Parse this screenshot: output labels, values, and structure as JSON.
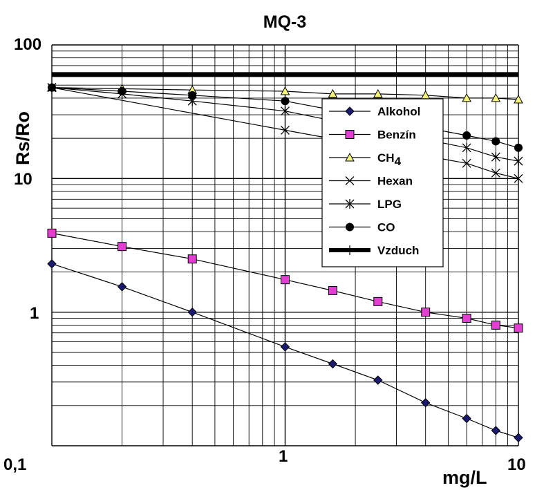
{
  "chart_data": {
    "type": "line",
    "title": "MQ-3",
    "xlabel": "mg/L",
    "ylabel": "Rs/Ro",
    "xscale": "log",
    "yscale": "log",
    "xlim": [
      0.1,
      10
    ],
    "ylim": [
      0.1,
      100
    ],
    "grid": true,
    "legend_position": "right",
    "x_tick_labels": [
      "0,1",
      "1",
      "10"
    ],
    "y_tick_labels": [
      "1",
      "10",
      "100"
    ],
    "series": [
      {
        "name": "Alkohol",
        "marker": "diamond",
        "color": "#1a1a70",
        "x": [
          0.1,
          0.2,
          0.4,
          1.0,
          1.6,
          2.5,
          4.0,
          6.0,
          8.0,
          10.0
        ],
        "y": [
          2.3,
          1.55,
          1.0,
          0.55,
          0.41,
          0.31,
          0.21,
          0.16,
          0.13,
          0.115
        ]
      },
      {
        "name": "Benzín",
        "marker": "square",
        "color": "#e23fd2",
        "x": [
          0.1,
          0.2,
          0.4,
          1.0,
          1.6,
          2.5,
          4.0,
          6.0,
          8.0,
          10.0
        ],
        "y": [
          3.9,
          3.1,
          2.5,
          1.75,
          1.45,
          1.2,
          1.0,
          0.9,
          0.8,
          0.76
        ]
      },
      {
        "name": "CH",
        "name_subscript": "4",
        "marker": "triangle",
        "color": "#f3f37a",
        "x": [
          0.1,
          0.2,
          0.4,
          1.0,
          1.6,
          2.5,
          4.0,
          6.0,
          8.0,
          10.0
        ],
        "y": [
          48,
          47,
          46,
          45,
          43,
          43,
          42,
          40,
          40,
          39
        ]
      },
      {
        "name": "Hexan",
        "marker": "x",
        "color": "#000000",
        "x": [
          0.1,
          1.0,
          6.0,
          8.0,
          10.0
        ],
        "y": [
          48,
          23,
          13,
          11,
          10
        ]
      },
      {
        "name": "LPG",
        "marker": "asterisk",
        "color": "#000000",
        "x": [
          0.1,
          0.2,
          0.4,
          1.0,
          6.0,
          8.0,
          10.0
        ],
        "y": [
          48,
          43,
          38,
          32,
          17,
          14.5,
          13.5
        ]
      },
      {
        "name": "CO",
        "marker": "circle",
        "color": "#000000",
        "x": [
          0.1,
          0.2,
          0.4,
          1.0,
          6.0,
          8.0,
          10.0
        ],
        "y": [
          48,
          45,
          42,
          38,
          21,
          19,
          17
        ]
      },
      {
        "name": "Vzduch",
        "marker": "none",
        "color": "#000000",
        "style": "thick",
        "x": [
          0.1,
          10.0
        ],
        "y": [
          60,
          60
        ]
      }
    ]
  }
}
